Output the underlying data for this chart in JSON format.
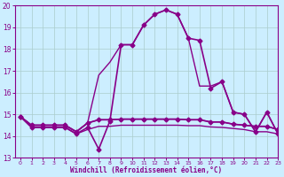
{
  "xlabel": "Windchill (Refroidissement éolien,°C)",
  "xlim": [
    -0.5,
    23
  ],
  "ylim": [
    13,
    20
  ],
  "yticks": [
    13,
    14,
    15,
    16,
    17,
    18,
    19,
    20
  ],
  "xticks": [
    0,
    1,
    2,
    3,
    4,
    5,
    6,
    7,
    8,
    9,
    10,
    11,
    12,
    13,
    14,
    15,
    16,
    17,
    18,
    19,
    20,
    21,
    22,
    23
  ],
  "bg_color": "#cceeff",
  "line_color": "#880088",
  "grid_color": "#aacccc",
  "lines": [
    {
      "x": [
        0,
        1,
        2,
        3,
        4,
        5,
        6,
        7,
        8,
        9,
        10,
        11,
        12,
        13,
        14,
        15,
        16,
        17,
        18,
        19,
        20,
        21,
        22,
        23
      ],
      "y": [
        14.9,
        14.4,
        14.4,
        14.4,
        14.4,
        14.1,
        14.4,
        13.4,
        14.7,
        18.2,
        18.2,
        19.1,
        19.6,
        19.8,
        19.6,
        18.5,
        18.4,
        16.2,
        16.5,
        15.1,
        15.0,
        14.2,
        15.1,
        14.1
      ],
      "marker": "D",
      "marker_size": 2.5,
      "line_width": 1.2,
      "zorder": 5
    },
    {
      "x": [
        0,
        1,
        2,
        3,
        4,
        5,
        6,
        7,
        8,
        9,
        10,
        11,
        12,
        13,
        14,
        15,
        16,
        17,
        18,
        19,
        20,
        21,
        22,
        23
      ],
      "y": [
        14.9,
        14.5,
        14.5,
        14.5,
        14.5,
        14.2,
        14.6,
        16.8,
        17.4,
        18.2,
        18.2,
        19.1,
        19.6,
        19.8,
        19.6,
        18.5,
        16.3,
        16.3,
        16.5,
        15.1,
        15.0,
        14.2,
        15.1,
        14.1
      ],
      "marker": null,
      "marker_size": 0,
      "line_width": 1.0,
      "zorder": 4
    },
    {
      "x": [
        0,
        1,
        2,
        3,
        4,
        5,
        6,
        7,
        8,
        9,
        10,
        11,
        12,
        13,
        14,
        15,
        16,
        17,
        18,
        19,
        20,
        21,
        22,
        23
      ],
      "y": [
        14.9,
        14.5,
        14.5,
        14.5,
        14.5,
        14.2,
        14.6,
        14.75,
        14.75,
        14.78,
        14.78,
        14.78,
        14.78,
        14.78,
        14.78,
        14.75,
        14.75,
        14.65,
        14.65,
        14.55,
        14.5,
        14.45,
        14.45,
        14.3
      ],
      "marker": null,
      "marker_size": 0,
      "line_width": 1.0,
      "zorder": 3
    },
    {
      "x": [
        0,
        1,
        2,
        3,
        4,
        5,
        6,
        7,
        8,
        9,
        10,
        11,
        12,
        13,
        14,
        15,
        16,
        17,
        18,
        19,
        20,
        21,
        22,
        23
      ],
      "y": [
        14.9,
        14.5,
        14.5,
        14.5,
        14.5,
        14.2,
        14.6,
        14.75,
        14.75,
        14.78,
        14.78,
        14.78,
        14.78,
        14.78,
        14.78,
        14.75,
        14.75,
        14.65,
        14.65,
        14.55,
        14.5,
        14.45,
        14.45,
        14.3
      ],
      "marker": "D",
      "marker_size": 2.5,
      "line_width": 1.2,
      "zorder": 6
    },
    {
      "x": [
        0,
        1,
        2,
        3,
        4,
        5,
        6,
        7,
        8,
        9,
        10,
        11,
        12,
        13,
        14,
        15,
        16,
        17,
        18,
        19,
        20,
        21,
        22,
        23
      ],
      "y": [
        14.9,
        14.4,
        14.4,
        14.4,
        14.4,
        14.1,
        14.3,
        14.45,
        14.45,
        14.5,
        14.5,
        14.5,
        14.5,
        14.5,
        14.5,
        14.48,
        14.48,
        14.42,
        14.4,
        14.35,
        14.3,
        14.2,
        14.2,
        14.1
      ],
      "marker": null,
      "marker_size": 0,
      "line_width": 1.0,
      "zorder": 2
    }
  ]
}
